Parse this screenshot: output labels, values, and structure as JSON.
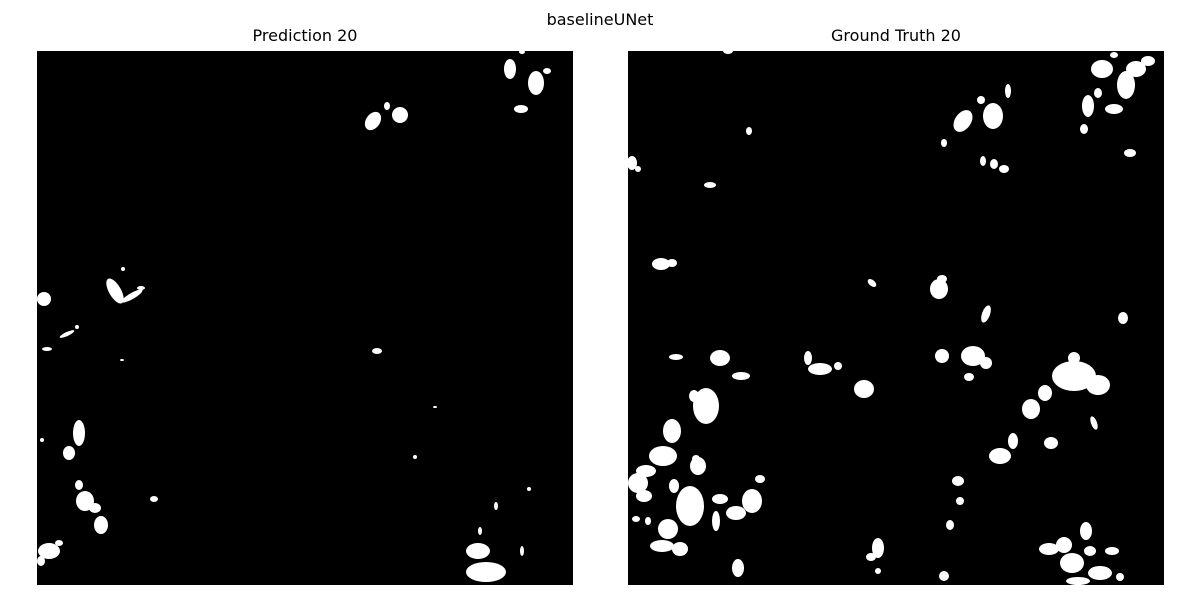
{
  "figure": {
    "suptitle": "baselineUNet"
  },
  "panels": [
    {
      "title": "Prediction 20",
      "background": "#000000",
      "foreground": "#ffffff"
    },
    {
      "title": "Ground Truth 20",
      "background": "#000000",
      "foreground": "#ffffff"
    }
  ]
}
